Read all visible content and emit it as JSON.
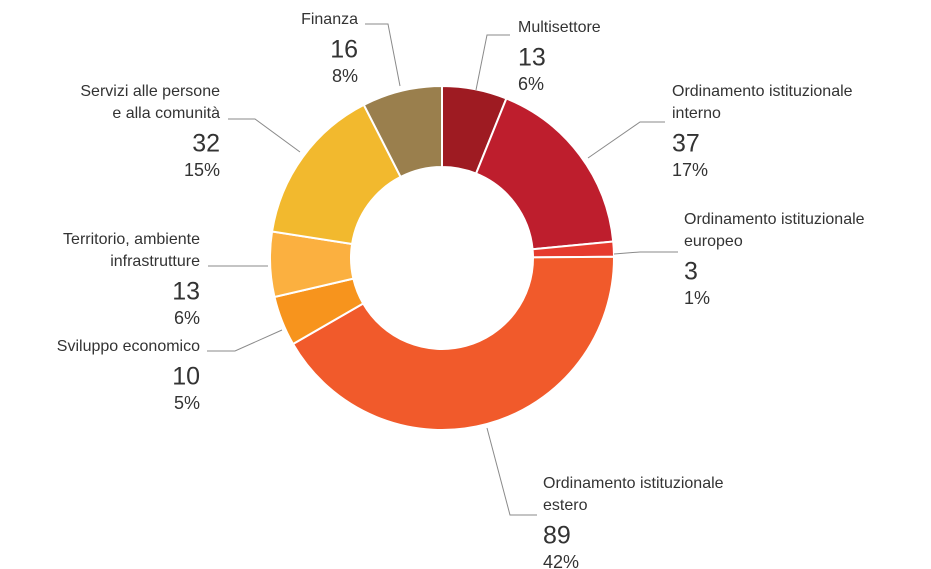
{
  "chart_data": {
    "type": "donut",
    "categories": [
      [
        "Multisettore"
      ],
      [
        "Ordinamento istituzionale",
        "interno"
      ],
      [
        "Ordinamento istituzionale",
        "europeo"
      ],
      [
        "Ordinamento istituzionale",
        "estero"
      ],
      [
        "Sviluppo economico"
      ],
      [
        "Territorio, ambiente",
        "infrastrutture"
      ],
      [
        "Servizi alle persone",
        "e alla comunità"
      ],
      [
        "Finanza"
      ]
    ],
    "values": [
      13,
      37,
      3,
      89,
      10,
      13,
      32,
      16
    ],
    "shares": [
      6,
      17,
      1,
      42,
      5,
      6,
      15,
      8
    ],
    "share_labels": [
      "6%",
      "17%",
      "1%",
      "42%",
      "5%",
      "6%",
      "15%",
      "8%"
    ],
    "colors": [
      "#9e1b22",
      "#be1e2d",
      "#e63b2e",
      "#f15a2b",
      "#f7941d",
      "#fbb040",
      "#f2b92e",
      "#9a7f4d"
    ]
  }
}
